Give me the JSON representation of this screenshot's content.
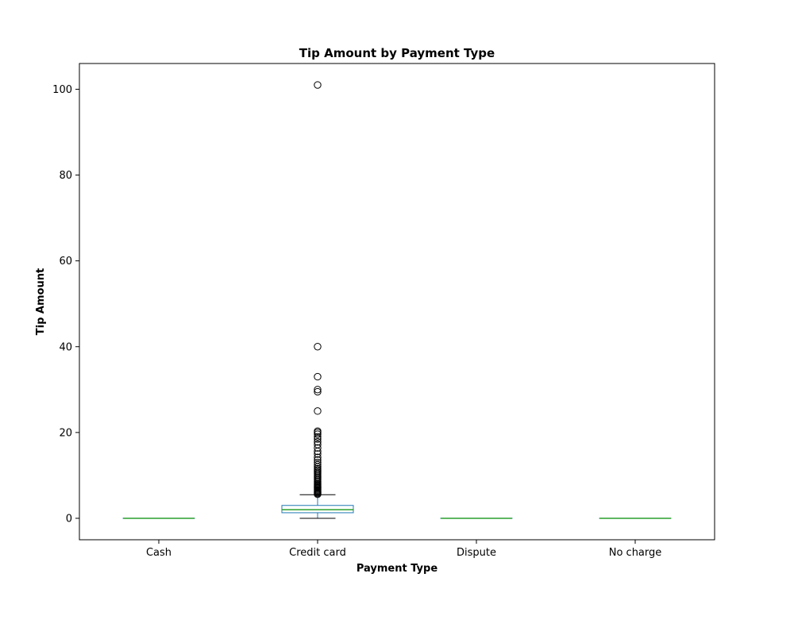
{
  "chart_data": {
    "type": "box",
    "title": "Tip Amount by Payment Type",
    "xlabel": "Payment Type",
    "ylabel": "Tip Amount",
    "ylim": [
      -5,
      106
    ],
    "yticks": [
      0,
      20,
      40,
      60,
      80,
      100
    ],
    "grid": false,
    "categories": [
      "Cash",
      "Credit card",
      "Dispute",
      "No charge"
    ],
    "boxes": [
      {
        "category": "Cash",
        "whislo": 0,
        "q1": 0,
        "med": 0,
        "q3": 0,
        "whishi": 0,
        "fliers": []
      },
      {
        "category": "Credit card",
        "whislo": 0,
        "q1": 1.3,
        "med": 2.0,
        "q3": 3.0,
        "whishi": 5.5,
        "fliers": [
          5.6,
          5.8,
          6.0,
          6.2,
          6.4,
          6.6,
          6.8,
          7.0,
          7.2,
          7.4,
          7.6,
          7.8,
          8.0,
          8.3,
          8.6,
          8.9,
          9.2,
          9.5,
          9.8,
          10.1,
          10.4,
          10.7,
          11.0,
          11.3,
          11.6,
          12.0,
          12.5,
          13.0,
          13.6,
          14.2,
          15.0,
          15.6,
          16.4,
          17.2,
          17.8,
          18.5,
          19.0,
          19.6,
          20.0,
          20.3,
          25.0,
          29.5,
          30.0,
          33.0,
          40.0,
          101.0
        ]
      },
      {
        "category": "Dispute",
        "whislo": 0,
        "q1": 0,
        "med": 0,
        "q3": 0,
        "whishi": 0,
        "fliers": []
      },
      {
        "category": "No charge",
        "whislo": 0,
        "q1": 0,
        "med": 0,
        "q3": 0,
        "whishi": 0,
        "fliers": []
      }
    ],
    "colors": {
      "box": "#1f77b4",
      "median": "#2ca02c",
      "whisker": "#1f77b4",
      "cap": "#000000",
      "flier": "#000000"
    }
  }
}
